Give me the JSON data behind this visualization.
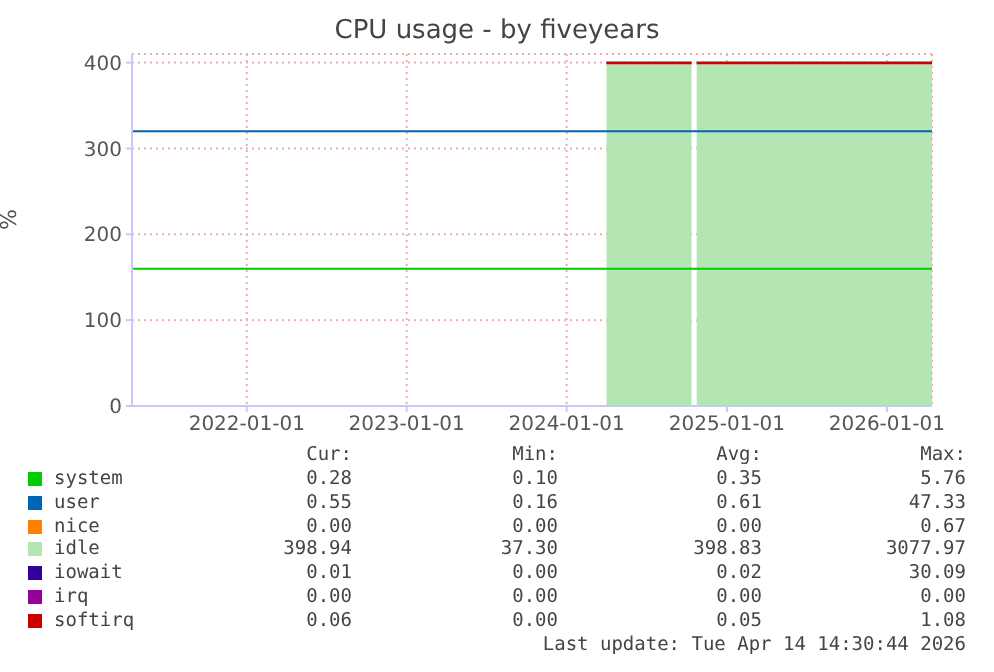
{
  "chart_data": {
    "type": "area",
    "title": "CPU usage - by fiveyears",
    "ylabel": "%",
    "stacked": true,
    "grid": true,
    "legend": "bottom",
    "x": [
      "2024-04-01",
      "2024-10-12",
      "2024-10-18",
      "2024-10-24",
      "2026-04-14"
    ],
    "xlim": [
      "2021-04-14",
      "2026-04-14"
    ],
    "xticks": [
      {
        "value": "2022-01-01",
        "label": "2022-01-01"
      },
      {
        "value": "2023-01-01",
        "label": "2023-01-01"
      },
      {
        "value": "2024-01-01",
        "label": "2024-01-01"
      },
      {
        "value": "2025-01-01",
        "label": "2025-01-01"
      },
      {
        "value": "2026-01-01",
        "label": "2026-01-01"
      }
    ],
    "ylim": [
      0,
      410
    ],
    "yticks": [
      0,
      100,
      200,
      300,
      400
    ],
    "series": [
      {
        "name": "system",
        "color": "#00cc00",
        "values": [
          null,
          null,
          null,
          null,
          null
        ]
      },
      {
        "name": "user",
        "color": "#0066b3",
        "values": [
          null,
          null,
          null,
          null,
          null
        ]
      },
      {
        "name": "nice",
        "color": "#ff8000",
        "values": [
          null,
          null,
          null,
          null,
          null
        ]
      },
      {
        "name": "idle",
        "color": "#b3e6b3",
        "values": [
          398,
          398,
          null,
          398,
          398
        ]
      },
      {
        "name": "iowait",
        "color": "#330099",
        "values": [
          null,
          null,
          null,
          null,
          null
        ]
      },
      {
        "name": "irq",
        "color": "#990099",
        "values": [
          null,
          null,
          null,
          null,
          null
        ]
      },
      {
        "name": "softirq",
        "color": "#cc0000",
        "values": [
          2,
          2,
          null,
          2,
          2
        ]
      }
    ],
    "ref_lines": [
      {
        "axis": "y",
        "value": 160,
        "color": "#00cc00"
      },
      {
        "axis": "y",
        "value": 320,
        "color": "#0066b3"
      }
    ],
    "annotations": [
      "Cur:",
      "Min:",
      "Avg:",
      "Max:",
      "0.28",
      "0.10",
      "0.35",
      "5.76",
      "0.55",
      "0.16",
      "0.61",
      "47.33",
      "0.00",
      "0.00",
      "0.00",
      "0.67",
      "398.94",
      "37.30",
      "398.83",
      "3077.97",
      "0.01",
      "0.00",
      "0.02",
      "30.09",
      "0.00",
      "0.00",
      "0.00",
      "0.00",
      "0.06",
      "0.00",
      "0.05",
      "1.08",
      "Last update: Tue Apr 14 14:30:44 2026"
    ]
  }
}
